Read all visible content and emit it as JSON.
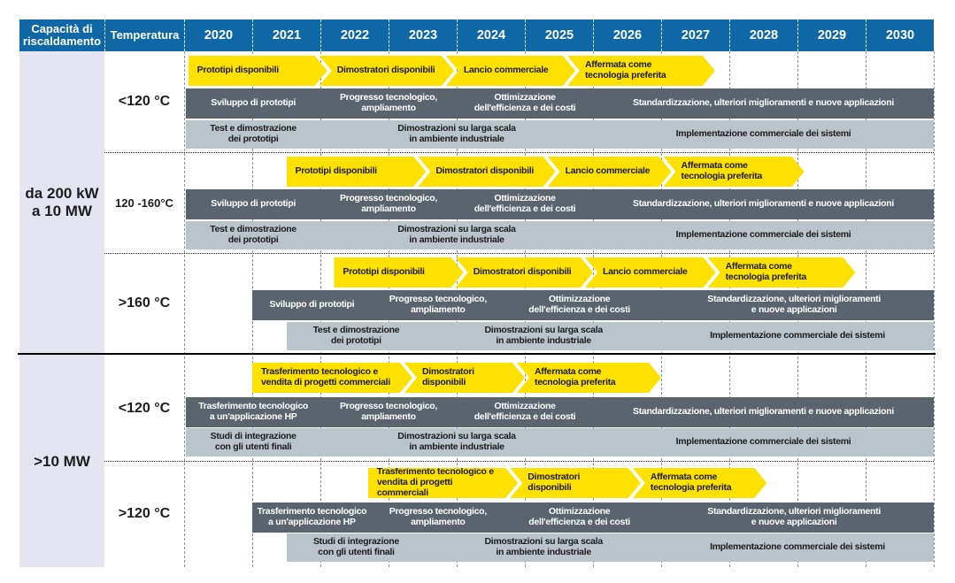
{
  "header": {
    "capacity": "Capacità di\nriscaldamento",
    "temperature": "Temperatura",
    "years": [
      "2020",
      "2021",
      "2022",
      "2023",
      "2024",
      "2025",
      "2026",
      "2027",
      "2028",
      "2029",
      "2030"
    ]
  },
  "colors": {
    "header_blue": "#0f67a6",
    "milestone_yellow": "#ffe100",
    "phase_dark_gray": "#59646e",
    "phase_light_gray": "#b9c4cb",
    "capacity_column_lavender": "#e4e5f1"
  },
  "groups": [
    {
      "label": "da 200 kW\na 10 MW",
      "rows": [
        {
          "temp": "<120 °C",
          "temp_size": "lg",
          "arrow": {
            "bounds": [
              0.06,
              2.1,
              3.96,
              5.74,
              7.79
            ],
            "labels": [
              "Prototipi disponibili",
              "Dimostratori disponibili",
              "Lancio commerciale",
              "Affermata come\ntecnologia preferita"
            ]
          },
          "dark": {
            "bounds": [
              0.03,
              2,
              4,
              6,
              11
            ],
            "labels": [
              "Sviluppo di prototipi",
              "Progresso tecnologico,\nampliamento",
              "Ottimizzazione\ndell'efficienza e dei costi",
              "Standardizzazione, ulteriori miglioramenti e nuove applicazioni"
            ]
          },
          "light": {
            "bounds": [
              0.03,
              2,
              6,
              11
            ],
            "labels": [
              "Test e dimostrazione\ndei prototipi",
              "Dimostrazioni su larga scala\nin ambiente industriale",
              "Implementazione commerciale dei sistemi"
            ]
          }
        },
        {
          "temp": "120 -160°C",
          "temp_size": "sm",
          "arrow": {
            "bounds": [
              1.5,
              3.55,
              5.45,
              7.15,
              9.1
            ],
            "labels": [
              "Prototipi disponibili",
              "Dimostratori disponibili",
              "Lancio commerciale",
              "Affermata come\ntecnologia preferita"
            ]
          },
          "dark": {
            "bounds": [
              0.03,
              2,
              4,
              6,
              11
            ],
            "labels": [
              "Sviluppo di prototipi",
              "Progresso tecnologico,\nampliamento",
              "Ottimizzazione\ndell'efficienza e dei costi",
              "Standardizzazione, ulteriori miglioramenti e nuove applicazioni"
            ]
          },
          "light": {
            "bounds": [
              0.03,
              2,
              6,
              11
            ],
            "labels": [
              "Test e dimostrazione\ndei prototipi",
              "Dimostrazioni su larga scala\nin ambiente industriale",
              "Implementazione commerciale dei sistemi"
            ]
          }
        },
        {
          "temp": ">160 °C",
          "temp_size": "lg",
          "arrow": {
            "bounds": [
              2.2,
              4.1,
              6.0,
              7.8,
              9.85
            ],
            "labels": [
              "Prototipi disponibili",
              "Dimostratori disponibili",
              "Lancio commerciale",
              "Affermata come\ntecnologia preferita"
            ]
          },
          "dark": {
            "bounds": [
              1.0,
              2.75,
              4.7,
              6.9,
              11
            ],
            "labels": [
              "Sviluppo di prototipi",
              "Progresso tecnologico,\nampliamento",
              "Ottimizzazione\ndell'efficienza e dei costi",
              "Standardizzazione, ulteriori miglioramenti\ne nuove applicazioni"
            ]
          },
          "light": {
            "bounds": [
              1.5,
              3.55,
              7.0,
              11
            ],
            "labels": [
              "Test e dimostrazione\ndei prototipi",
              "Dimostrazioni su larga scala\nin ambiente industriale",
              "Implementazione commerciale dei sistemi"
            ]
          }
        }
      ]
    },
    {
      "label": ">10 MW",
      "rows": [
        {
          "temp": "<120 °C",
          "temp_size": "lg",
          "arrow": {
            "bounds": [
              1.0,
              3.35,
              5.0,
              7.0
            ],
            "labels": [
              "Trasferimento tecnologico e\nvendita di progetti commerciali",
              "Dimostratori\ndisponibili",
              "Affermata come\ntecnologia preferita"
            ]
          },
          "dark": {
            "bounds": [
              0.03,
              2,
              4,
              6,
              11
            ],
            "labels": [
              "Trasferimento tecnologico\na un'applicazione HP",
              "Progresso tecnologico,\nampliamento",
              "Ottimizzazione\ndell'efficienza e dei costi",
              "Standardizzazione, ulteriori miglioramenti e nuove applicazioni"
            ]
          },
          "light": {
            "bounds": [
              0.03,
              2,
              6,
              11
            ],
            "labels": [
              "Studi di integrazione\ncon gli utenti finali",
              "Dimostrazioni su larga scala\nin ambiente industriale",
              "Implementazione commerciale dei sistemi"
            ]
          }
        },
        {
          "temp": ">120 °C",
          "temp_size": "lg",
          "arrow": {
            "bounds": [
              2.7,
              4.9,
              6.7,
              8.55
            ],
            "labels": [
              "Trasferimento tecnologico e\nvendita di progetti commerciali",
              "Dimostratori\ndisponibili",
              "Affermata come\ntecnologia preferita"
            ]
          },
          "dark": {
            "bounds": [
              1.0,
              2.75,
              4.7,
              6.9,
              11
            ],
            "labels": [
              "Trasferimento tecnologico\na un'applicazione HP",
              "Progresso tecnologico,\nampliamento",
              "Ottimizzazione\ndell'efficienza e dei costi",
              "Standardizzazione, ulteriori miglioramenti\ne nuove applicazioni"
            ]
          },
          "light": {
            "bounds": [
              1.5,
              3.55,
              7.0,
              11
            ],
            "labels": [
              "Studi di integrazione\ncon gli utenti finali",
              "Dimostrazioni su larga scala\nin ambiente industriale",
              "Implementazione commerciale dei sistemi"
            ]
          }
        }
      ]
    }
  ]
}
